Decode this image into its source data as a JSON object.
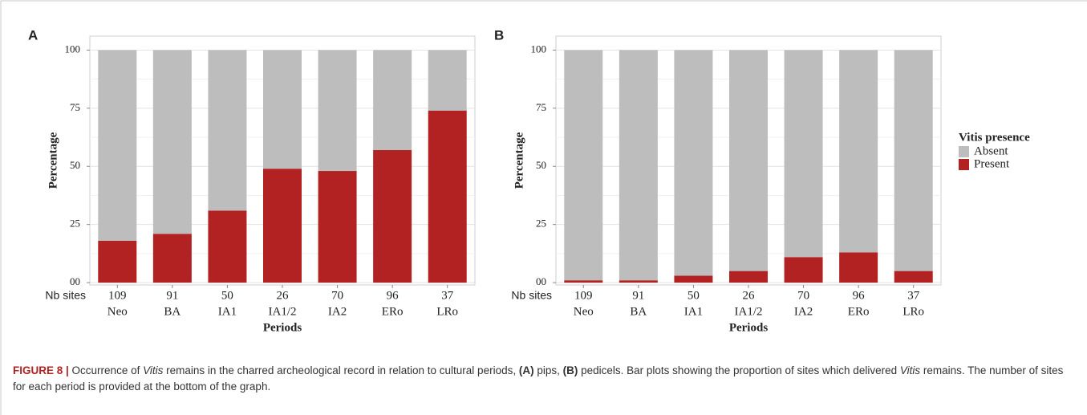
{
  "chart_data": [
    {
      "type": "bar",
      "stacked": true,
      "panel": "A",
      "ylabel": "Percentage",
      "xlabel": "Periods",
      "row_label": "Nb sites",
      "categories": [
        "Neo",
        "BA",
        "IA1",
        "IA1/2",
        "IA2",
        "ERo",
        "LRo"
      ],
      "counts": [
        109,
        91,
        50,
        26,
        70,
        96,
        37
      ],
      "series": [
        {
          "name": "Absent",
          "color": "#bdbdbd",
          "values": [
            82,
            79,
            69,
            51,
            52,
            43,
            26
          ]
        },
        {
          "name": "Present",
          "color": "#b22222",
          "values": [
            18,
            21,
            31,
            49,
            48,
            57,
            74
          ]
        }
      ],
      "ylim": [
        -1,
        106
      ],
      "yticks": [
        {
          "value": 0,
          "label": "00"
        },
        25,
        50,
        75,
        100
      ],
      "grid": true,
      "legend": "none"
    },
    {
      "type": "bar",
      "stacked": true,
      "panel": "B",
      "ylabel": "Percentage",
      "xlabel": "Periods",
      "row_label": "Nb sites",
      "categories": [
        "Neo",
        "BA",
        "IA1",
        "IA1/2",
        "IA2",
        "ERo",
        "LRo"
      ],
      "counts": [
        109,
        91,
        50,
        26,
        70,
        96,
        37
      ],
      "series": [
        {
          "name": "Absent",
          "color": "#bdbdbd",
          "values": [
            99,
            99,
            97,
            95,
            89,
            87,
            95
          ]
        },
        {
          "name": "Present",
          "color": "#b22222",
          "values": [
            1,
            1,
            3,
            5,
            11,
            13,
            5
          ]
        }
      ],
      "ylim": [
        -1,
        106
      ],
      "yticks": [
        {
          "value": 0,
          "label": "00"
        },
        25,
        50,
        75,
        100
      ],
      "grid": true,
      "legend": "right",
      "legend_title": "Vitis presence"
    }
  ],
  "caption": [
    "FIGURE 8 |",
    " Occurrence of ",
    "Vitis",
    " remains in the charred archeological record in relation to cultural periods, ",
    "(A)",
    " pips, ",
    "(B)",
    " pedicels. Bar plots showing the proportion of sites which delivered ",
    "Vitis",
    " remains. The number of sites for each period is provided at the bottom of the graph."
  ]
}
